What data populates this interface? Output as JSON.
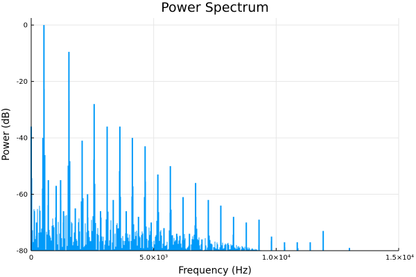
{
  "chart_data": {
    "type": "line",
    "title": "Power Spectrum",
    "xlabel": "Frequency (Hz)",
    "ylabel": "Power (dB)",
    "xlim": [
      0,
      15000
    ],
    "ylim": [
      -80,
      2.5
    ],
    "x_ticks": [
      {
        "value": 0,
        "label": "0"
      },
      {
        "value": 5000,
        "label": "5.0×10³"
      },
      {
        "value": 10000,
        "label": "1.0×10⁴"
      },
      {
        "value": 15000,
        "label": "1.5×10⁴"
      }
    ],
    "y_ticks": [
      {
        "value": 0,
        "label": "0"
      },
      {
        "value": -20,
        "label": "-20"
      },
      {
        "value": -40,
        "label": "-40"
      },
      {
        "value": -60,
        "label": "-60"
      },
      {
        "value": -80,
        "label": "-80"
      }
    ],
    "grid": true,
    "legend": false,
    "series_color": "#009AF9",
    "floor_db": -80,
    "peaks": [
      {
        "x": 0,
        "y": -36
      },
      {
        "x": 220,
        "y": -70
      },
      {
        "x": 480,
        "y": -40
      },
      {
        "x": 520,
        "y": 0
      },
      {
        "x": 700,
        "y": -55
      },
      {
        "x": 1020,
        "y": -57
      },
      {
        "x": 1200,
        "y": -55
      },
      {
        "x": 1320,
        "y": -66
      },
      {
        "x": 1540,
        "y": -9.5
      },
      {
        "x": 1800,
        "y": -65
      },
      {
        "x": 2080,
        "y": -41
      },
      {
        "x": 2300,
        "y": -60
      },
      {
        "x": 2570,
        "y": -28
      },
      {
        "x": 2830,
        "y": -66
      },
      {
        "x": 3100,
        "y": -36
      },
      {
        "x": 3350,
        "y": -62
      },
      {
        "x": 3620,
        "y": -36
      },
      {
        "x": 3880,
        "y": -66
      },
      {
        "x": 4130,
        "y": -40
      },
      {
        "x": 4380,
        "y": -68
      },
      {
        "x": 4650,
        "y": -43
      },
      {
        "x": 4900,
        "y": -70
      },
      {
        "x": 5170,
        "y": -53
      },
      {
        "x": 5420,
        "y": -72
      },
      {
        "x": 5680,
        "y": -50
      },
      {
        "x": 5940,
        "y": -74
      },
      {
        "x": 6200,
        "y": -61
      },
      {
        "x": 6460,
        "y": -74
      },
      {
        "x": 6710,
        "y": -56
      },
      {
        "x": 6970,
        "y": -76
      },
      {
        "x": 7230,
        "y": -62
      },
      {
        "x": 7740,
        "y": -64
      },
      {
        "x": 8260,
        "y": -68
      },
      {
        "x": 8780,
        "y": -70
      },
      {
        "x": 9300,
        "y": -69
      },
      {
        "x": 9810,
        "y": -75
      },
      {
        "x": 10340,
        "y": -77
      },
      {
        "x": 10860,
        "y": -77
      },
      {
        "x": 11390,
        "y": -77
      },
      {
        "x": 11920,
        "y": -73
      },
      {
        "x": 12990,
        "y": -79
      }
    ]
  }
}
